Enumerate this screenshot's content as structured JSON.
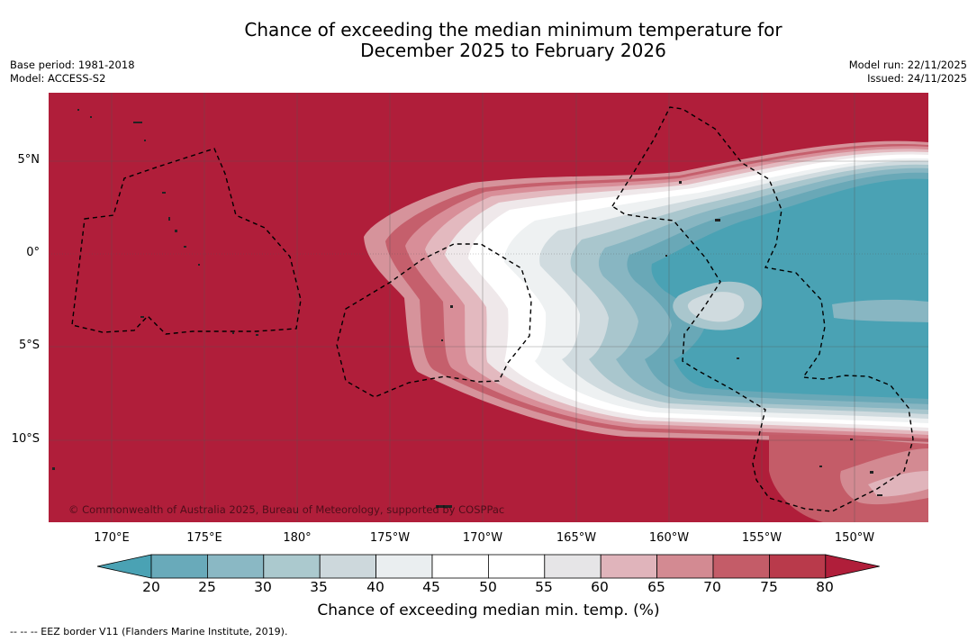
{
  "title": {
    "line1": "Chance of exceeding the median minimum temperature for",
    "line2": "December 2025 to February 2026"
  },
  "meta_left": {
    "base_period": "Base period: 1981-2018",
    "model": "Model: ACCESS-S2"
  },
  "meta_right": {
    "model_run": "Model run: 22/11/2025",
    "issued": "Issued: 24/11/2025"
  },
  "map": {
    "lat_labels": [
      "5°N",
      "0°",
      "5°S",
      "10°S"
    ],
    "lon_labels": [
      "170°E",
      "175°E",
      "180°",
      "175°W",
      "170°W",
      "165°W",
      "160°W",
      "155°W",
      "150°W"
    ],
    "copyright": "© Commonwealth of Australia 2025, Bureau of Meteorology, supported by COSPPac"
  },
  "colorbar": {
    "ticks": [
      "20",
      "25",
      "30",
      "35",
      "40",
      "45",
      "50",
      "55",
      "60",
      "65",
      "70",
      "75",
      "80"
    ],
    "colors": [
      "#4aa2b4",
      "#69aaba",
      "#8ab8c4",
      "#abc9ce",
      "#cdd8dc",
      "#eaeef0",
      "#ffffff",
      "#ffffff",
      "#e6e5e7",
      "#e0b4bb",
      "#d38a92",
      "#c45c68",
      "#b93a4b",
      "#b01e3a"
    ],
    "label": "Chance of exceeding median min. temp. (%)"
  },
  "footnote": "--  --  -- EEZ border V11 (Flanders Marine Institute, 2019)."
}
